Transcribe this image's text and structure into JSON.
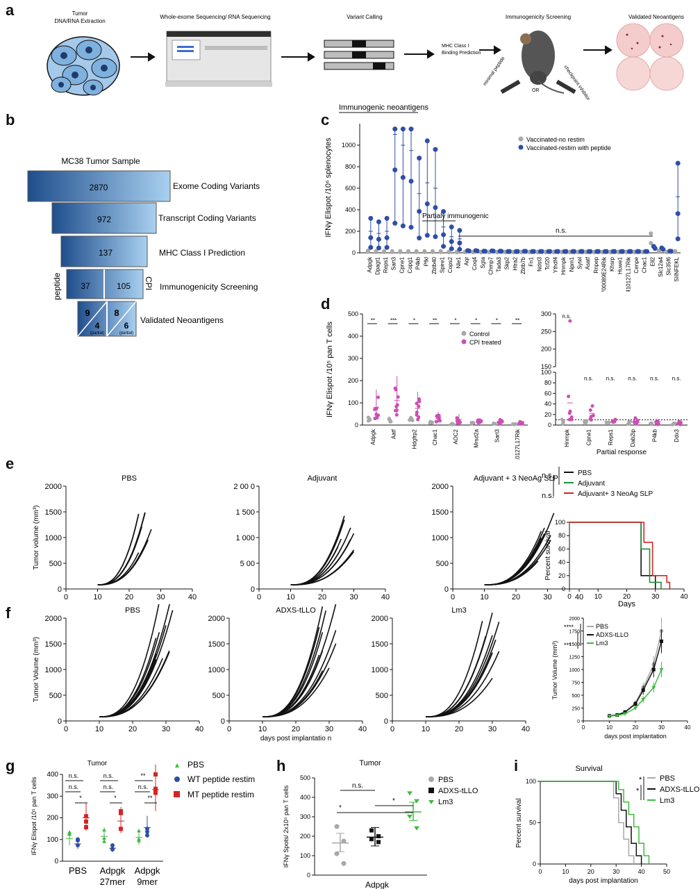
{
  "panels": {
    "a": {
      "letter": "a",
      "steps": [
        "Tumor\nDNA/RNA Extraction",
        "Whole-exome Sequencing/ RNA Sequencing",
        "Variant Calling",
        "MHC Class I\nBinding Prediction",
        "Immunogenicity Screening",
        "Validated Neoantigens"
      ],
      "mouse_labels": [
        "minimal peptide",
        "OR",
        "checkpoint inhibitor"
      ]
    },
    "b": {
      "letter": "b",
      "title": "MC38 Tumor Sample",
      "levels": [
        {
          "value": "2870",
          "label": "Exome Coding Variants"
        },
        {
          "value": "972",
          "label": "Transcript Coding Variants"
        },
        {
          "value": "137",
          "label": "MHC Class I Prediction"
        },
        {
          "value_left": "37",
          "value_right": "105",
          "label": "Immunogenicity Screening",
          "side_left": "peptide",
          "side_right": "CPI"
        },
        {
          "value_left": "9",
          "value_left_partial": "4",
          "value_right": "8",
          "value_right_partial": "6",
          "partial_text": "(partial)",
          "label": "Validated Neoantigens"
        }
      ]
    },
    "c": {
      "letter": "c"
    },
    "d": {
      "letter": "d"
    },
    "e": {
      "letter": "e"
    },
    "f": {
      "letter": "f"
    },
    "g": {
      "letter": "g"
    },
    "h": {
      "letter": "h"
    },
    "i": {
      "letter": "i"
    }
  },
  "colors": {
    "blue": "#2f4ea6",
    "gray": "#a8a8a8",
    "pink": "#cc4fb3",
    "green": "#1e8f3c",
    "red": "#d42424",
    "lightgreen": "#3dbb3d",
    "funnel_dark": "#1f4e8c",
    "funnel_light": "#9cc6ea"
  },
  "chart_data": [
    {
      "id": "c",
      "type": "scatter",
      "ylabel": "IFNγ Elispot /10⁶ splenocytes",
      "ylim": [
        0,
        1200
      ],
      "yticks": [
        0,
        200,
        400,
        600,
        800,
        1000
      ],
      "legend": [
        "Vaccinated-no restim",
        "Vaccinated-restim with peptide"
      ],
      "annotations": [
        "Immunogenic neoantigens",
        "Partialy immunogenic",
        "n.s."
      ],
      "categories": [
        "Adpgk",
        "Dpagt1",
        "Reps1",
        "Sart3",
        "Cpne1",
        "Copg1",
        "P4kb",
        "Pfkl",
        "Zbtb40",
        "Spire1",
        "Cops2",
        "Nle1",
        "Aqr",
        "Coq4",
        "Sgta",
        "Chmp7",
        "Tada3",
        "Skp2",
        "Htra2",
        "Zbtb7b",
        "Fn1",
        "Ndst3",
        "Tcf20",
        "Ythdf4",
        "Hnrnpk",
        "Npm1",
        "Sytel",
        "Asatf",
        "Rnpep",
        "2700089E24Rik",
        "Khsrp",
        "Huwe1",
        "2410127L17Rik",
        "Cenpe",
        "Chac1",
        "Ell2",
        "Slc12a4",
        "Slc35f6",
        "SIINFEKL"
      ],
      "series": [
        {
          "name": "Vaccinated-restim with peptide",
          "values": [
            200,
            180,
            200,
            1100,
            1000,
            950,
            550,
            650,
            600,
            240,
            150,
            130,
            20,
            20,
            15,
            18,
            15,
            12,
            12,
            14,
            12,
            12,
            12,
            12,
            12,
            12,
            12,
            12,
            12,
            12,
            12,
            12,
            12,
            12,
            12,
            60,
            45,
            15,
            520
          ]
        },
        {
          "name": "Vaccinated-no restim",
          "values": [
            20,
            15,
            15,
            15,
            15,
            15,
            15,
            15,
            15,
            15,
            10,
            10,
            10,
            10,
            10,
            10,
            10,
            10,
            10,
            10,
            10,
            10,
            10,
            10,
            10,
            10,
            10,
            10,
            10,
            10,
            10,
            10,
            10,
            10,
            10,
            180,
            20,
            10,
            15
          ]
        }
      ]
    },
    {
      "id": "d",
      "type": "scatter",
      "ylabel": "IFNγ Elispot /10⁵ pan T cells",
      "legend": [
        "Control",
        "CPI treated"
      ],
      "left": {
        "ylim": [
          0,
          500
        ],
        "yticks": [
          0,
          100,
          200,
          300,
          400,
          500
        ],
        "categories": [
          "Adpgk",
          "Aatf",
          "Hdgfrp2",
          "Chac1",
          "AOC2",
          "Mrsd2a",
          "Sart3",
          "2410127L17Rik"
        ],
        "significance": [
          "**",
          "***",
          "*",
          "**",
          "*",
          "*",
          "*",
          "**"
        ],
        "control_means": [
          25,
          20,
          25,
          10,
          5,
          8,
          5,
          5
        ],
        "cpi_means": [
          80,
          110,
          75,
          30,
          25,
          15,
          15,
          10
        ]
      },
      "right": {
        "yticks_low": [
          0,
          20,
          40,
          60,
          80,
          100
        ],
        "yticks_high": [
          150,
          200,
          250,
          300
        ],
        "xlabel": "Partial response",
        "categories": [
          "Hnrnpk",
          "Cpne1",
          "Reps1",
          "Dab2ip",
          "P4kb",
          "Ddx3"
        ],
        "significance": [
          "n.s.",
          "n.s.",
          "n.s.",
          "n.s.",
          "n.s.",
          "n.s."
        ],
        "control_means": [
          8,
          5,
          4,
          4,
          3,
          2
        ],
        "cpi_means": [
          42,
          22,
          8,
          8,
          6,
          4
        ]
      }
    },
    {
      "id": "e",
      "type": "line",
      "ylabel": "Tumor volume (mm³)",
      "titles": [
        "PBS",
        "Adjuvant",
        "Adjuvant + 3 NeoAg SLP"
      ],
      "yticks_labels": [
        [
          "0",
          "500",
          "1000",
          "1500",
          "2000"
        ],
        [
          "0",
          "5 00",
          "1 000",
          "1 500",
          "2 00 0"
        ],
        [
          "0",
          "500",
          "1000",
          "1500",
          "2000"
        ]
      ],
      "xticks": [
        0,
        10,
        20,
        30,
        40
      ],
      "survival": {
        "ylabel": "Percent survival",
        "xlabel": "Days",
        "yticks": [
          0,
          20,
          40,
          60,
          80,
          100
        ],
        "xticks": [
          0,
          10,
          20,
          30,
          40
        ],
        "legend": [
          "PBS",
          "Adjuvant",
          "Adjuvant+ 3 NeoAg SLP"
        ],
        "sig": [
          "n.s.",
          "n.s."
        ]
      }
    },
    {
      "id": "f",
      "type": "line",
      "ylabel": "Tumor Volume (mm³)",
      "xlabel": "days post implantatio n",
      "titles": [
        "PBS",
        "ADXS-tLLO",
        "Lm3"
      ],
      "yticks": [
        0,
        500,
        1000,
        1500,
        2000
      ],
      "xticks": [
        0,
        10,
        20,
        30,
        40
      ],
      "mean_plot": {
        "ylabel": "Tumor Volume (mm³)",
        "xlabel": "days post implantation",
        "yticks": [
          0,
          250,
          500,
          750,
          1000,
          1250,
          1500,
          1750,
          2000,
          2500
        ],
        "xticks": [
          0,
          10,
          20,
          30,
          40
        ],
        "legend": [
          "PBS",
          "ADXS-tLLO",
          "Lm3"
        ],
        "sig": [
          "****",
          "***"
        ],
        "x": [
          10,
          13,
          16,
          20,
          23,
          27,
          30
        ],
        "series": [
          {
            "name": "PBS",
            "values": [
              100,
              120,
              180,
              350,
              650,
              1100,
              1750
            ]
          },
          {
            "name": "ADXS-tLLO",
            "values": [
              100,
              115,
              170,
              330,
              600,
              1000,
              1550
            ]
          },
          {
            "name": "Lm3",
            "values": [
              95,
              105,
              140,
              250,
              420,
              650,
              1000
            ]
          }
        ]
      }
    },
    {
      "id": "g",
      "type": "scatter",
      "title": "Tumor",
      "ylabel": "IFNγ Elispot /10⁵ pan T cells",
      "ylim": [
        0,
        400
      ],
      "yticks": [
        0,
        100,
        200,
        300,
        400
      ],
      "groups": [
        "PBS",
        "Adpgk\n27mer",
        "Adpgk\n9mer"
      ],
      "legend": [
        "PBS",
        "WT peptide restim",
        "MT peptide restim"
      ],
      "sig_top": [
        "n.s.",
        "n.s.",
        "**"
      ],
      "sig_mid": [
        "n.s.",
        "n.s.",
        "n.s."
      ],
      "sig_low": [
        "*",
        "*",
        "**"
      ],
      "means": {
        "PBS": [
          105,
          115,
          110
        ],
        "WT peptide restim": [
          80,
          60,
          155
        ],
        "MT peptide restim": [
          200,
          185,
          330
        ]
      }
    },
    {
      "id": "h",
      "type": "scatter",
      "title": "Tumor",
      "ylabel": "IFNγ Spots/ 2x10⁵ pan T cells",
      "xlabel": "Adpgk",
      "ylim": [
        0,
        500
      ],
      "yticks": [
        0,
        100,
        200,
        300,
        400,
        500
      ],
      "legend": [
        "PBS",
        "ADXS-tLLO",
        "Lm3"
      ],
      "sig": [
        "n.s.",
        "*",
        "*"
      ],
      "means": [
        165,
        195,
        325
      ],
      "points": [
        [
          250,
          175,
          110,
          60
        ],
        [
          230,
          200,
          185,
          170
        ],
        [
          420,
          380,
          300,
          240
        ]
      ]
    },
    {
      "id": "i",
      "type": "line",
      "title": "Survival",
      "ylabel": "Percent survival",
      "xlabel": "days post implantation",
      "yticks": [
        0,
        50,
        100
      ],
      "xticks": [
        0,
        10,
        20,
        30,
        40,
        50
      ],
      "legend": [
        "PBS",
        "ADXS-tLLO",
        "Lm3"
      ],
      "sig": [
        "*",
        "*"
      ]
    }
  ]
}
